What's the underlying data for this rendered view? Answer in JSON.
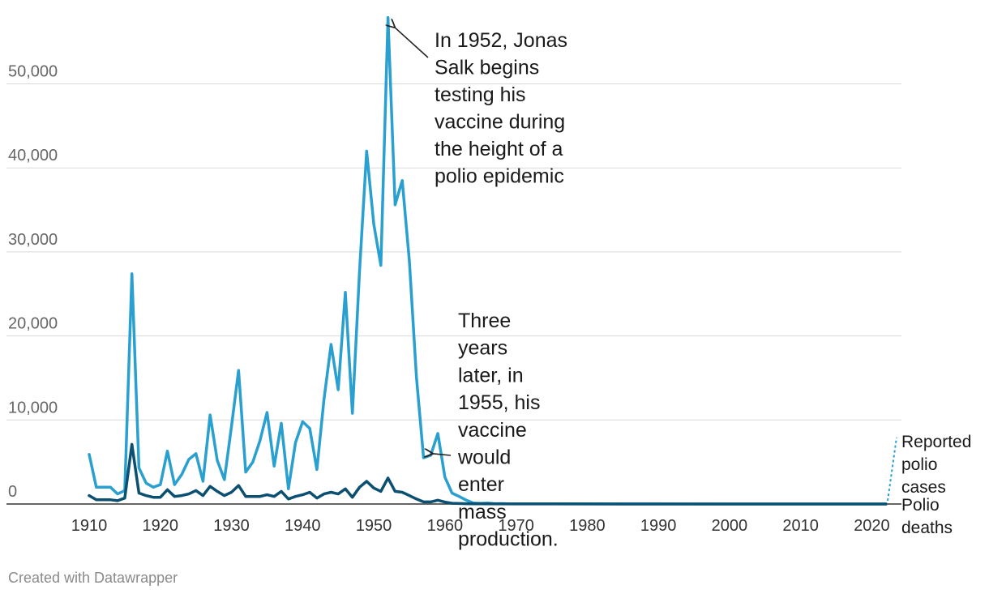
{
  "chart_data": {
    "type": "line",
    "title": "",
    "xlabel": "",
    "ylabel": "",
    "xlim": [
      1910,
      2022
    ],
    "ylim": [
      0,
      57000
    ],
    "yticks": [
      0,
      10000,
      20000,
      30000,
      40000,
      50000
    ],
    "ytick_labels": [
      "0",
      "10,000",
      "20,000",
      "30,000",
      "40,000",
      "50,000"
    ],
    "xticks": [
      1910,
      1920,
      1930,
      1940,
      1950,
      1960,
      1970,
      1980,
      1990,
      2000,
      2010,
      2020
    ],
    "xtick_labels": [
      "1910",
      "1920",
      "1930",
      "1940",
      "1950",
      "1960",
      "1970",
      "1980",
      "1990",
      "2000",
      "2010",
      "2020"
    ],
    "grid": true,
    "series": [
      {
        "name": "Reported polio cases",
        "label_lines": [
          "Reported",
          "polio",
          "cases"
        ],
        "color": "#29a0cf",
        "x": [
          1910,
          1911,
          1912,
          1913,
          1914,
          1915,
          1916,
          1917,
          1918,
          1919,
          1920,
          1921,
          1922,
          1923,
          1924,
          1925,
          1926,
          1927,
          1928,
          1929,
          1930,
          1931,
          1932,
          1933,
          1934,
          1935,
          1936,
          1937,
          1938,
          1939,
          1940,
          1941,
          1942,
          1943,
          1944,
          1945,
          1946,
          1947,
          1948,
          1949,
          1950,
          1951,
          1952,
          1953,
          1954,
          1955,
          1956,
          1957,
          1958,
          1959,
          1960,
          1961,
          1962,
          1963,
          1964,
          1965,
          1966,
          1967,
          1968,
          1969,
          1970,
          1975,
          1980,
          1990,
          2000,
          2010,
          2022
        ],
        "values": [
          5900,
          2000,
          2000,
          2000,
          1200,
          1600,
          27400,
          4300,
          2500,
          2000,
          2300,
          6300,
          2300,
          3500,
          5300,
          6000,
          2700,
          10600,
          5200,
          2900,
          9200,
          15900,
          3800,
          5000,
          7500,
          10900,
          4500,
          9600,
          1800,
          7300,
          9800,
          9000,
          4100,
          12400,
          19000,
          13600,
          25200,
          10800,
          27700,
          42000,
          33300,
          28400,
          57900,
          35600,
          38500,
          28900,
          15100,
          5500,
          5800,
          8400,
          3200,
          1300,
          900,
          450,
          120,
          70,
          110,
          40,
          50,
          30,
          30,
          15,
          10,
          5,
          0,
          0,
          0
        ]
      },
      {
        "name": "Polio deaths",
        "label_lines": [
          "Polio",
          "deaths"
        ],
        "color": "#0b4f71",
        "x": [
          1910,
          1911,
          1912,
          1913,
          1914,
          1915,
          1916,
          1917,
          1918,
          1919,
          1920,
          1921,
          1922,
          1923,
          1924,
          1925,
          1926,
          1927,
          1928,
          1929,
          1930,
          1931,
          1932,
          1933,
          1934,
          1935,
          1936,
          1937,
          1938,
          1939,
          1940,
          1941,
          1942,
          1943,
          1944,
          1945,
          1946,
          1947,
          1948,
          1949,
          1950,
          1951,
          1952,
          1953,
          1954,
          1955,
          1956,
          1957,
          1958,
          1959,
          1960,
          1961,
          1962,
          1963,
          1964,
          1965,
          1970,
          1980,
          1990,
          2000,
          2010,
          2022
        ],
        "values": [
          1000,
          500,
          500,
          500,
          400,
          700,
          7100,
          1300,
          1000,
          800,
          800,
          1700,
          900,
          1000,
          1200,
          1600,
          1000,
          2100,
          1500,
          1000,
          1400,
          2200,
          900,
          900,
          900,
          1100,
          900,
          1500,
          600,
          900,
          1100,
          1400,
          700,
          1200,
          1400,
          1200,
          1800,
          800,
          2000,
          2700,
          1900,
          1500,
          3100,
          1500,
          1400,
          1000,
          600,
          250,
          250,
          450,
          230,
          90,
          60,
          40,
          20,
          15,
          10,
          5,
          0,
          0,
          0,
          0
        ]
      }
    ],
    "annotations": [
      {
        "text_lines": [
          "In 1952, Jonas",
          "Salk begins",
          "testing his",
          "vaccine during",
          "the height of a",
          "polio epidemic"
        ],
        "x": 1952,
        "y": 57900
      },
      {
        "text_lines": [
          "Three",
          "years",
          "later, in",
          "1955, his",
          "vaccine",
          "would",
          "enter",
          "mass",
          "production."
        ],
        "x": 1958,
        "y": 5800
      }
    ]
  },
  "footer": "Created with Datawrapper"
}
